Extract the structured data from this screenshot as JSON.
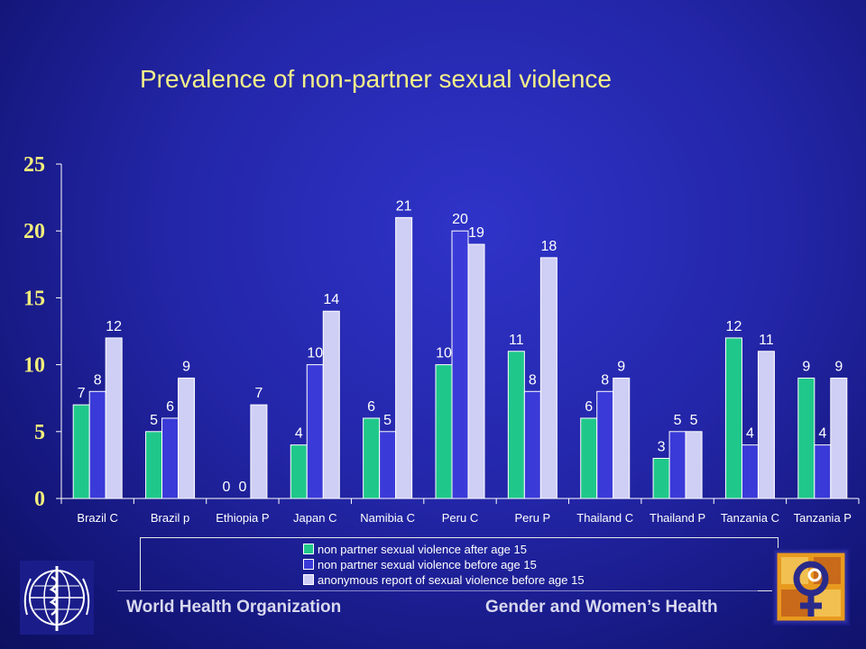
{
  "header": {
    "title": "Prevalence of non-partner sexual violence"
  },
  "chart_data": {
    "type": "bar",
    "title": "Prevalence of non-partner sexual violence",
    "categories": [
      "Brazil C",
      "Brazil p",
      "Ethiopia P",
      "Japan C",
      "Namibia C",
      "Peru C",
      "Peru P",
      "Thailand C",
      "Thailand P",
      "Tanzania C",
      "Tanzania P"
    ],
    "series": [
      {
        "name": "non partner sexual violence after age 15",
        "color": "#1fc88a",
        "values": [
          7,
          5,
          0,
          4,
          6,
          10,
          11,
          6,
          3,
          12,
          9
        ]
      },
      {
        "name": "non partner sexual violence before age 15",
        "color": "#3a3ad8",
        "values": [
          8,
          6,
          0,
          10,
          5,
          20,
          8,
          8,
          5,
          4,
          4
        ]
      },
      {
        "name": "anonymous report of sexual violence before age 15",
        "color": "#cfcff5",
        "values": [
          12,
          9,
          7,
          14,
          21,
          19,
          18,
          9,
          5,
          11,
          9
        ]
      }
    ],
    "ylim": [
      0,
      25
    ],
    "yticks": [
      0,
      5,
      10,
      15,
      20,
      25
    ],
    "grid": false,
    "legend_position": "bottom"
  },
  "footer": {
    "left": "World Health Organization",
    "right": "Gender and Women’s Health"
  },
  "logos": {
    "left": "who-emblem",
    "right": "gender-symbol-logo"
  }
}
